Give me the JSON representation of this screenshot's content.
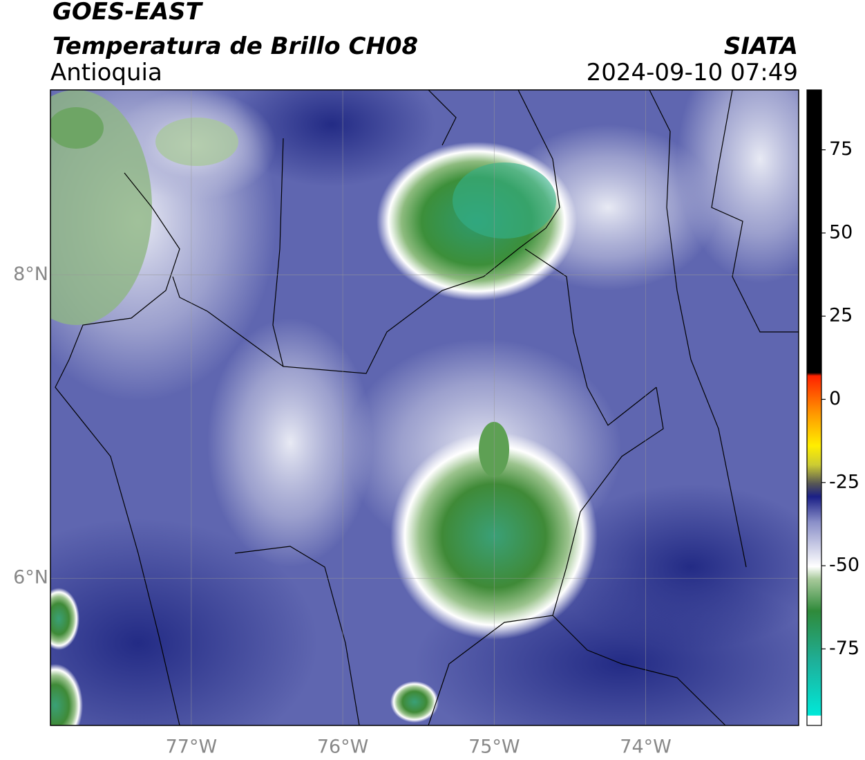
{
  "header": {
    "satellite": "GOES-EAST",
    "product": "Temperatura de Brillo CH08",
    "region": "Antioquia",
    "source": "SIATA",
    "datetime": "2024-09-10 07:49"
  },
  "map": {
    "lonlim": [
      -77.93,
      -72.99
    ],
    "latlim": [
      5.03,
      9.22
    ],
    "lon_ticks": [
      {
        "value": -77,
        "label": "77°W"
      },
      {
        "value": -76,
        "label": "76°W"
      },
      {
        "value": -75,
        "label": "75°W"
      },
      {
        "value": -74,
        "label": "74°W"
      }
    ],
    "lat_ticks": [
      {
        "value": 8,
        "label": "8°N"
      },
      {
        "value": 6,
        "label": "6°N"
      }
    ]
  },
  "colorbar": {
    "lim": [
      -98,
      93
    ],
    "ticks": [
      75,
      50,
      25,
      0,
      -25,
      -50,
      -75
    ]
  }
}
